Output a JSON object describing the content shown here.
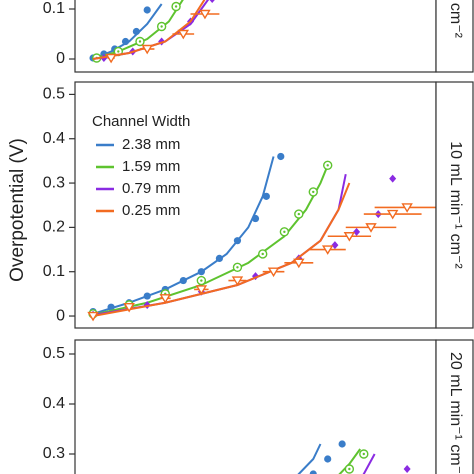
{
  "y_label": "Overpotential (V)",
  "legend_title": "Channel Width",
  "chart_data": [
    {
      "type": "scatter",
      "strip": "cm⁻²",
      "xlim": [
        0,
        100
      ],
      "ylim": [
        -0.026,
        0.13
      ],
      "yticks": [
        0,
        0.1
      ],
      "series": [
        {
          "color": "#3a7dc9",
          "marker": "circle",
          "x": [
            5,
            8,
            11,
            14,
            17,
            20
          ],
          "values": [
            0.002,
            0.01,
            0.02,
            0.035,
            0.055,
            0.098
          ],
          "fit_x": [
            5,
            10,
            15,
            20,
            24
          ],
          "fit_values": [
            0.0,
            0.015,
            0.035,
            0.07,
            0.11
          ]
        },
        {
          "color": "#5ec32f",
          "marker": "ring",
          "x": [
            6,
            12,
            18,
            24,
            28
          ],
          "values": [
            0.002,
            0.015,
            0.035,
            0.065,
            0.105
          ],
          "fit_x": [
            5,
            12,
            20,
            26,
            30
          ],
          "fit_values": [
            0.0,
            0.015,
            0.04,
            0.075,
            0.12
          ]
        },
        {
          "color": "#8a2be2",
          "marker": "diamond",
          "x": [
            8,
            16,
            24,
            32,
            38
          ],
          "values": [
            0.002,
            0.015,
            0.035,
            0.075,
            0.12
          ],
          "fit_x": [
            5,
            15,
            25,
            32,
            37
          ],
          "fit_values": [
            0.0,
            0.012,
            0.035,
            0.07,
            0.12
          ]
        },
        {
          "color": "#f26b21",
          "marker": "triangle",
          "x": [
            10,
            20,
            30,
            36
          ],
          "values": [
            0.002,
            0.02,
            0.05,
            0.09
          ],
          "xerr": [
            1,
            2,
            3,
            4
          ],
          "fit_x": [
            5,
            15,
            25,
            32,
            36
          ],
          "fit_values": [
            0.0,
            0.012,
            0.035,
            0.075,
            0.12
          ]
        }
      ]
    },
    {
      "type": "scatter",
      "strip": "10 mL min⁻¹ cm⁻²",
      "xlim": [
        0,
        100
      ],
      "ylim": [
        -0.027,
        0.528
      ],
      "yticks": [
        0,
        0.1,
        0.2,
        0.3,
        0.4,
        0.5
      ],
      "series": [
        {
          "name": "2.38 mm",
          "color": "#3a7dc9",
          "marker": "circle",
          "x": [
            5,
            10,
            15,
            20,
            25,
            30,
            35,
            40,
            45,
            50,
            53,
            57
          ],
          "values": [
            0.01,
            0.02,
            0.03,
            0.045,
            0.06,
            0.08,
            0.1,
            0.13,
            0.17,
            0.22,
            0.27,
            0.36
          ],
          "fit_x": [
            5,
            15,
            25,
            35,
            42,
            48,
            52,
            55
          ],
          "fit_values": [
            0.005,
            0.03,
            0.06,
            0.1,
            0.14,
            0.2,
            0.27,
            0.36
          ]
        },
        {
          "name": "1.59 mm",
          "color": "#5ec32f",
          "marker": "ring",
          "x": [
            5,
            15,
            25,
            35,
            45,
            52,
            58,
            62,
            66,
            70
          ],
          "values": [
            0.005,
            0.025,
            0.05,
            0.08,
            0.11,
            0.14,
            0.19,
            0.23,
            0.28,
            0.34
          ],
          "fit_x": [
            5,
            20,
            35,
            48,
            58,
            64,
            68,
            70
          ],
          "fit_values": [
            0.003,
            0.03,
            0.07,
            0.12,
            0.18,
            0.24,
            0.3,
            0.34
          ]
        },
        {
          "name": "0.79 mm",
          "color": "#8a2be2",
          "marker": "diamond",
          "x": [
            5,
            20,
            35,
            50,
            62,
            72,
            78,
            84,
            88
          ],
          "values": [
            0.003,
            0.025,
            0.055,
            0.09,
            0.13,
            0.16,
            0.19,
            0.23,
            0.31
          ],
          "fit_x": [
            5,
            25,
            45,
            60,
            68,
            73,
            75
          ],
          "fit_values": [
            0.002,
            0.03,
            0.07,
            0.12,
            0.17,
            0.24,
            0.32
          ]
        },
        {
          "name": "0.25 mm",
          "color": "#f26b21",
          "marker": "triangle",
          "x": [
            5,
            15,
            25,
            35,
            45,
            55,
            62,
            70,
            76,
            82,
            88,
            92
          ],
          "values": [
            0.0,
            0.02,
            0.04,
            0.06,
            0.08,
            0.1,
            0.12,
            0.15,
            0.18,
            0.2,
            0.23,
            0.245
          ],
          "xerr": [
            0.5,
            1,
            1.5,
            2,
            2.5,
            3,
            4,
            5,
            6,
            7,
            8,
            9
          ],
          "fit_x": [
            5,
            25,
            45,
            60,
            68,
            73,
            76
          ],
          "fit_values": [
            0.0,
            0.03,
            0.07,
            0.12,
            0.17,
            0.24,
            0.3
          ]
        }
      ]
    },
    {
      "type": "scatter",
      "strip": "20 mL min⁻¹ cm⁻²",
      "xlim": [
        0,
        100
      ],
      "ylim": [
        0.216,
        0.528
      ],
      "yticks": [
        0.3,
        0.4,
        0.5
      ],
      "series": [
        {
          "color": "#3a7dc9",
          "marker": "circle",
          "x": [
            62,
            66,
            70,
            74
          ],
          "values": [
            0.24,
            0.26,
            0.29,
            0.32
          ],
          "fit_x": [
            58,
            62,
            66,
            68
          ],
          "fit_values": [
            0.23,
            0.26,
            0.29,
            0.32
          ]
        },
        {
          "color": "#5ec32f",
          "marker": "ring",
          "x": [
            72,
            76,
            80
          ],
          "values": [
            0.24,
            0.27,
            0.3
          ],
          "fit_x": [
            68,
            72,
            76,
            79
          ],
          "fit_values": [
            0.22,
            0.25,
            0.28,
            0.31
          ]
        },
        {
          "color": "#8a2be2",
          "marker": "diamond",
          "x": [
            84,
            88,
            92
          ],
          "values": [
            0.24,
            0.25,
            0.27
          ],
          "fit_x": [
            76,
            80,
            83
          ],
          "fit_values": [
            0.22,
            0.26,
            0.3
          ]
        }
      ]
    }
  ]
}
